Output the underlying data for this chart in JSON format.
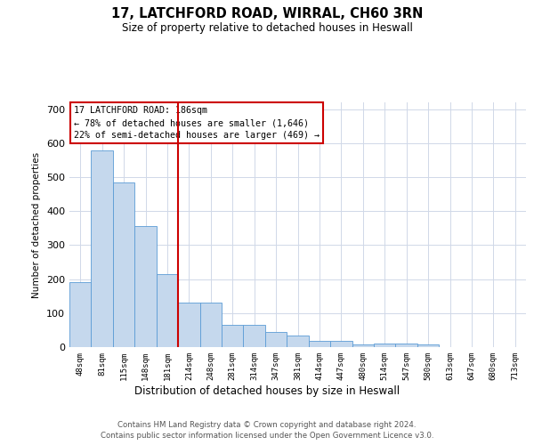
{
  "title_line1": "17, LATCHFORD ROAD, WIRRAL, CH60 3RN",
  "title_line2": "Size of property relative to detached houses in Heswall",
  "xlabel": "Distribution of detached houses by size in Heswall",
  "ylabel": "Number of detached properties",
  "categories": [
    "48sqm",
    "81sqm",
    "115sqm",
    "148sqm",
    "181sqm",
    "214sqm",
    "248sqm",
    "281sqm",
    "314sqm",
    "347sqm",
    "381sqm",
    "414sqm",
    "447sqm",
    "480sqm",
    "514sqm",
    "547sqm",
    "580sqm",
    "613sqm",
    "647sqm",
    "680sqm",
    "713sqm"
  ],
  "values": [
    192,
    578,
    484,
    357,
    214,
    130,
    130,
    65,
    65,
    45,
    35,
    18,
    18,
    8,
    11,
    11,
    7,
    0,
    0,
    0,
    0
  ],
  "bar_color": "#c5d8ed",
  "bar_edge_color": "#5b9bd5",
  "grid_color": "#d0d8e8",
  "vline_bar_index": 4,
  "vline_color": "#cc0000",
  "annotation_text": "17 LATCHFORD ROAD: 186sqm\n← 78% of detached houses are smaller (1,646)\n22% of semi-detached houses are larger (469) →",
  "annotation_box_color": "#cc0000",
  "ylim": [
    0,
    720
  ],
  "yticks": [
    0,
    100,
    200,
    300,
    400,
    500,
    600,
    700
  ],
  "footer_line1": "Contains HM Land Registry data © Crown copyright and database right 2024.",
  "footer_line2": "Contains public sector information licensed under the Open Government Licence v3.0."
}
